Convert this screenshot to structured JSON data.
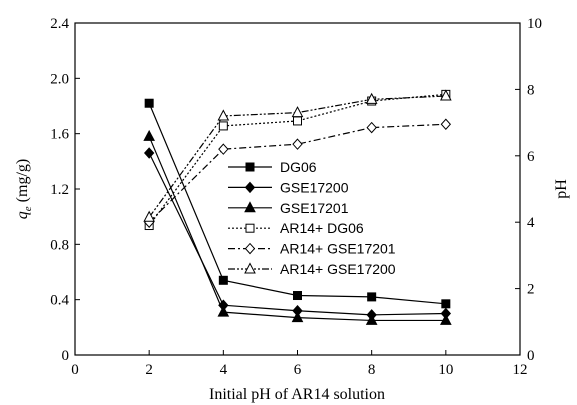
{
  "chart_data": {
    "type": "line",
    "title": "",
    "xlabel": "Initial pH of AR14 solution",
    "ylabel": "q",
    "ylabel_sub": "e",
    "ylabel_unit": " (mg/g)",
    "y2label": "pH",
    "xlim": [
      0,
      12
    ],
    "ylim": [
      0,
      2.4
    ],
    "y2lim": [
      0,
      10
    ],
    "xticks": [
      "0",
      "2",
      "4",
      "6",
      "8",
      "10",
      "12"
    ],
    "yticks": [
      "0",
      "0.4",
      "0.8",
      "1.2",
      "1.6",
      "2.0",
      "2.4"
    ],
    "y2ticks": [
      "0",
      "2",
      "4",
      "6",
      "8",
      "10"
    ],
    "grid": false,
    "legend_position": "center-right",
    "series": [
      {
        "name": "DG06",
        "axis": "left",
        "marker": "square-filled",
        "dash": "solid",
        "x": [
          2,
          4,
          6,
          8,
          10
        ],
        "y": [
          1.82,
          0.54,
          0.43,
          0.42,
          0.37
        ]
      },
      {
        "name": "GSE17200",
        "axis": "left",
        "marker": "diamond-filled",
        "dash": "solid",
        "x": [
          2,
          4,
          6,
          8,
          10
        ],
        "y": [
          1.46,
          0.36,
          0.32,
          0.29,
          0.3
        ]
      },
      {
        "name": "GSE17201",
        "axis": "left",
        "marker": "triangle-filled",
        "dash": "solid",
        "x": [
          2,
          4,
          6,
          8,
          10
        ],
        "y": [
          1.58,
          0.31,
          0.27,
          0.25,
          0.25
        ]
      },
      {
        "name": "AR14+ DG06",
        "axis": "right",
        "marker": "square-open",
        "dash": "dotted",
        "x": [
          2,
          4,
          6,
          8,
          10
        ],
        "y": [
          3.9,
          6.9,
          7.05,
          7.65,
          7.85
        ]
      },
      {
        "name": "AR14+ GSE17201",
        "axis": "right",
        "marker": "diamond-open",
        "dash": "dashdot",
        "x": [
          2,
          4,
          6,
          8,
          10
        ],
        "y": [
          4.0,
          6.2,
          6.35,
          6.85,
          6.95
        ]
      },
      {
        "name": "AR14+ GSE17200",
        "axis": "right",
        "marker": "triangle-open",
        "dash": "dashdotdot",
        "x": [
          2,
          4,
          6,
          8,
          10
        ],
        "y": [
          4.15,
          7.2,
          7.3,
          7.7,
          7.8
        ]
      }
    ]
  }
}
